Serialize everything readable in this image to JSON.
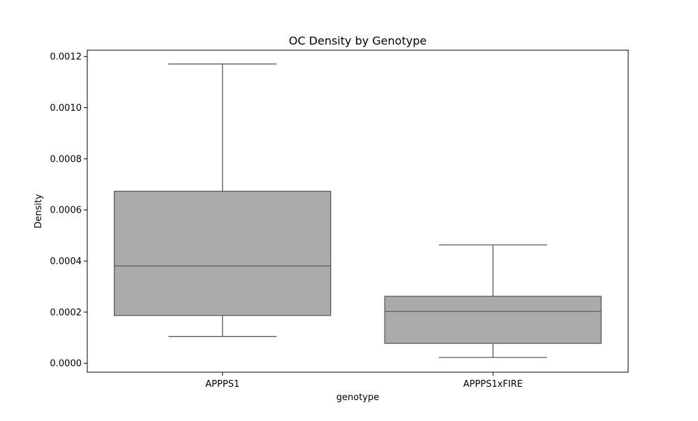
{
  "chart_data": {
    "type": "box",
    "title": "OC Density by Genotype",
    "xlabel": "genotype",
    "ylabel": "Density",
    "ylim": [
      -3.5e-05,
      0.001225
    ],
    "yticks": [
      0.0,
      0.0002,
      0.0004,
      0.0006,
      0.0008,
      0.001,
      0.0012
    ],
    "ytick_labels": [
      "0.0000",
      "0.0002",
      "0.0004",
      "0.0006",
      "0.0008",
      "0.0010",
      "0.0012"
    ],
    "categories": [
      "APPPS1",
      "APPPS1xFIRE"
    ],
    "boxes": [
      {
        "name": "APPPS1",
        "whisker_low": 0.000105,
        "q1": 0.000187,
        "median": 0.000381,
        "q3": 0.000673,
        "whisker_high": 0.001171
      },
      {
        "name": "APPPS1xFIRE",
        "whisker_low": 2.3e-05,
        "q1": 7.8e-05,
        "median": 0.000203,
        "q3": 0.000262,
        "whisker_high": 0.000463
      }
    ],
    "box_color": "#ababab",
    "line_color": "#595959",
    "grid": false,
    "legend": "none"
  }
}
